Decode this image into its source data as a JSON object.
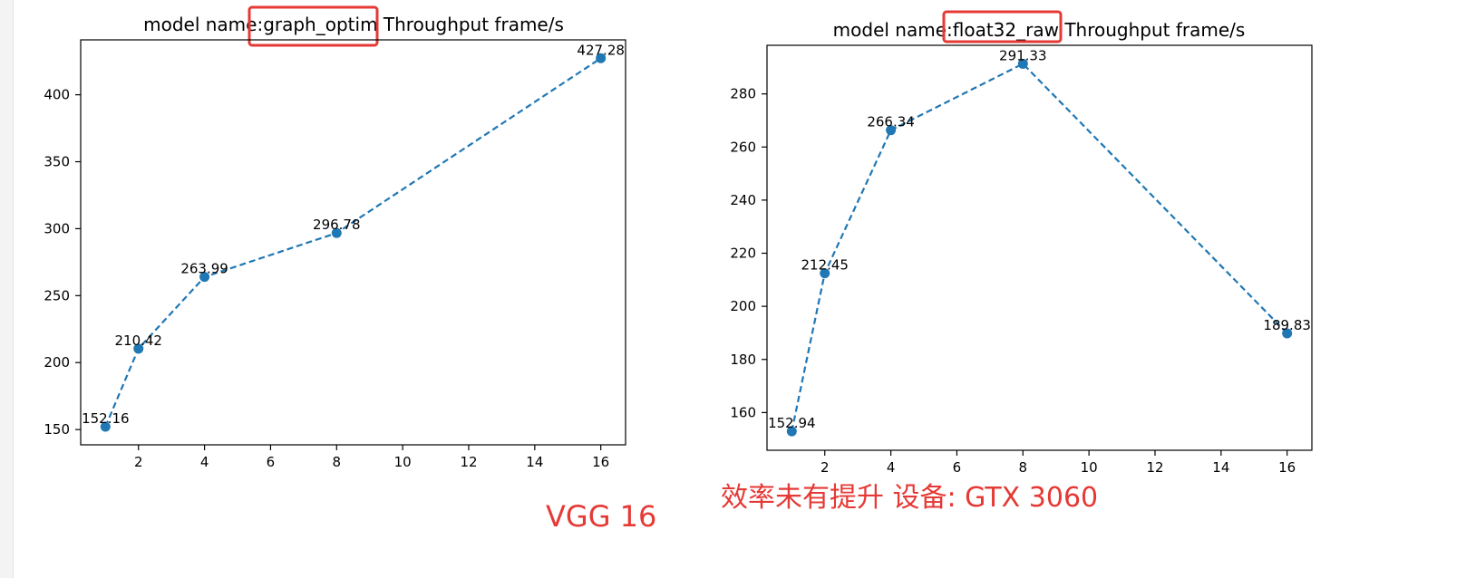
{
  "colors": {
    "series": "#1f77b4",
    "highlight_box": "#e53935",
    "annotation_text": "#e53935"
  },
  "annotations": {
    "device_note": "效率未有提升 设备: GTX 3060",
    "model_note": "VGG 16"
  },
  "chart_data": [
    {
      "type": "line",
      "title_prefix": "model name:",
      "title_model": "graph_optim",
      "title_suffix": " Throughput frame/s",
      "title": "model name:graph_optim  Throughput frame/s",
      "xlabel": "",
      "ylabel": "",
      "x": [
        1,
        2,
        4,
        8,
        16
      ],
      "values": [
        152.16,
        210.42,
        263.99,
        296.78,
        427.28
      ],
      "point_labels": [
        "152.16",
        "210.42",
        "263.99",
        "296.78",
        "427.28"
      ],
      "xticks": [
        "2",
        "4",
        "6",
        "8",
        "10",
        "12",
        "14",
        "16"
      ],
      "yticks": [
        "150",
        "200",
        "250",
        "300",
        "350",
        "400"
      ],
      "xlim": [
        0.25,
        16.75
      ],
      "ylim": [
        138.6,
        441.0
      ],
      "line_style": "dashed",
      "marker": "circle",
      "grid": false,
      "model_name_highlighted": true
    },
    {
      "type": "line",
      "title_prefix": "model name:",
      "title_model": "float32_raw",
      "title_suffix": " Throughput frame/s",
      "title": "model name:float32_raw, Throughput frame/s",
      "xlabel": "",
      "ylabel": "",
      "x": [
        1,
        2,
        4,
        8,
        16
      ],
      "values": [
        152.94,
        212.45,
        266.34,
        291.33,
        189.83
      ],
      "point_labels": [
        "152.94",
        "212.45",
        "266.34",
        "291.33",
        "189.83"
      ],
      "xticks": [
        "2",
        "4",
        "6",
        "8",
        "10",
        "12",
        "14",
        "16"
      ],
      "yticks": [
        "160",
        "180",
        "200",
        "220",
        "240",
        "260",
        "280"
      ],
      "xlim": [
        0.25,
        16.75
      ],
      "ylim": [
        145.8,
        298.3
      ],
      "line_style": "dashed",
      "marker": "circle",
      "grid": false,
      "model_name_highlighted": true
    }
  ]
}
